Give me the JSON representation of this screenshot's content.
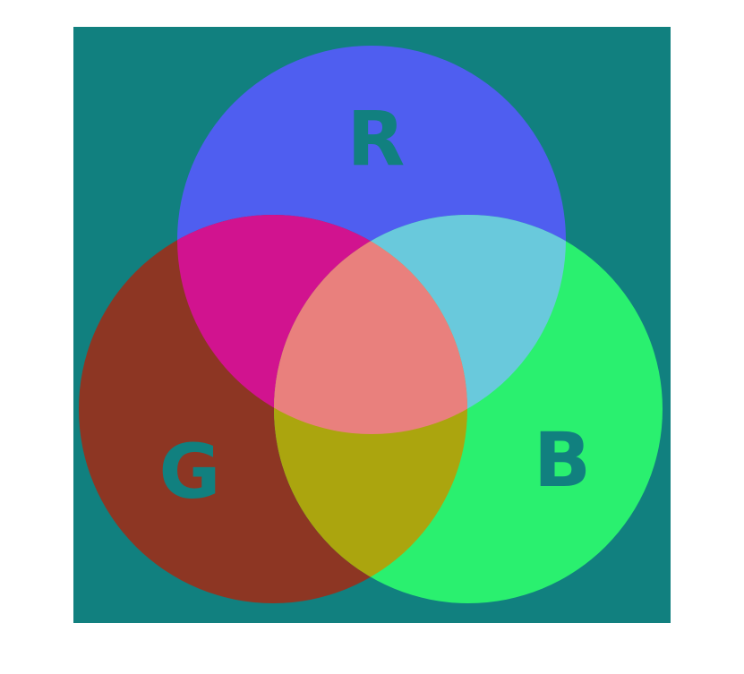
{
  "diagram": {
    "background_color": "#11807f",
    "label_color": "#11807f",
    "regions": {
      "r_only": "#4f5ef0",
      "g_only": "#8d3623",
      "b_only": "#2af06f",
      "rg": "#d1138f",
      "rb": "#69c9dc",
      "gb": "#aba50e",
      "rgb": "#e9807d"
    },
    "circles": [
      {
        "id": "r",
        "label": "R"
      },
      {
        "id": "g",
        "label": "G"
      },
      {
        "id": "b",
        "label": "B"
      }
    ]
  }
}
